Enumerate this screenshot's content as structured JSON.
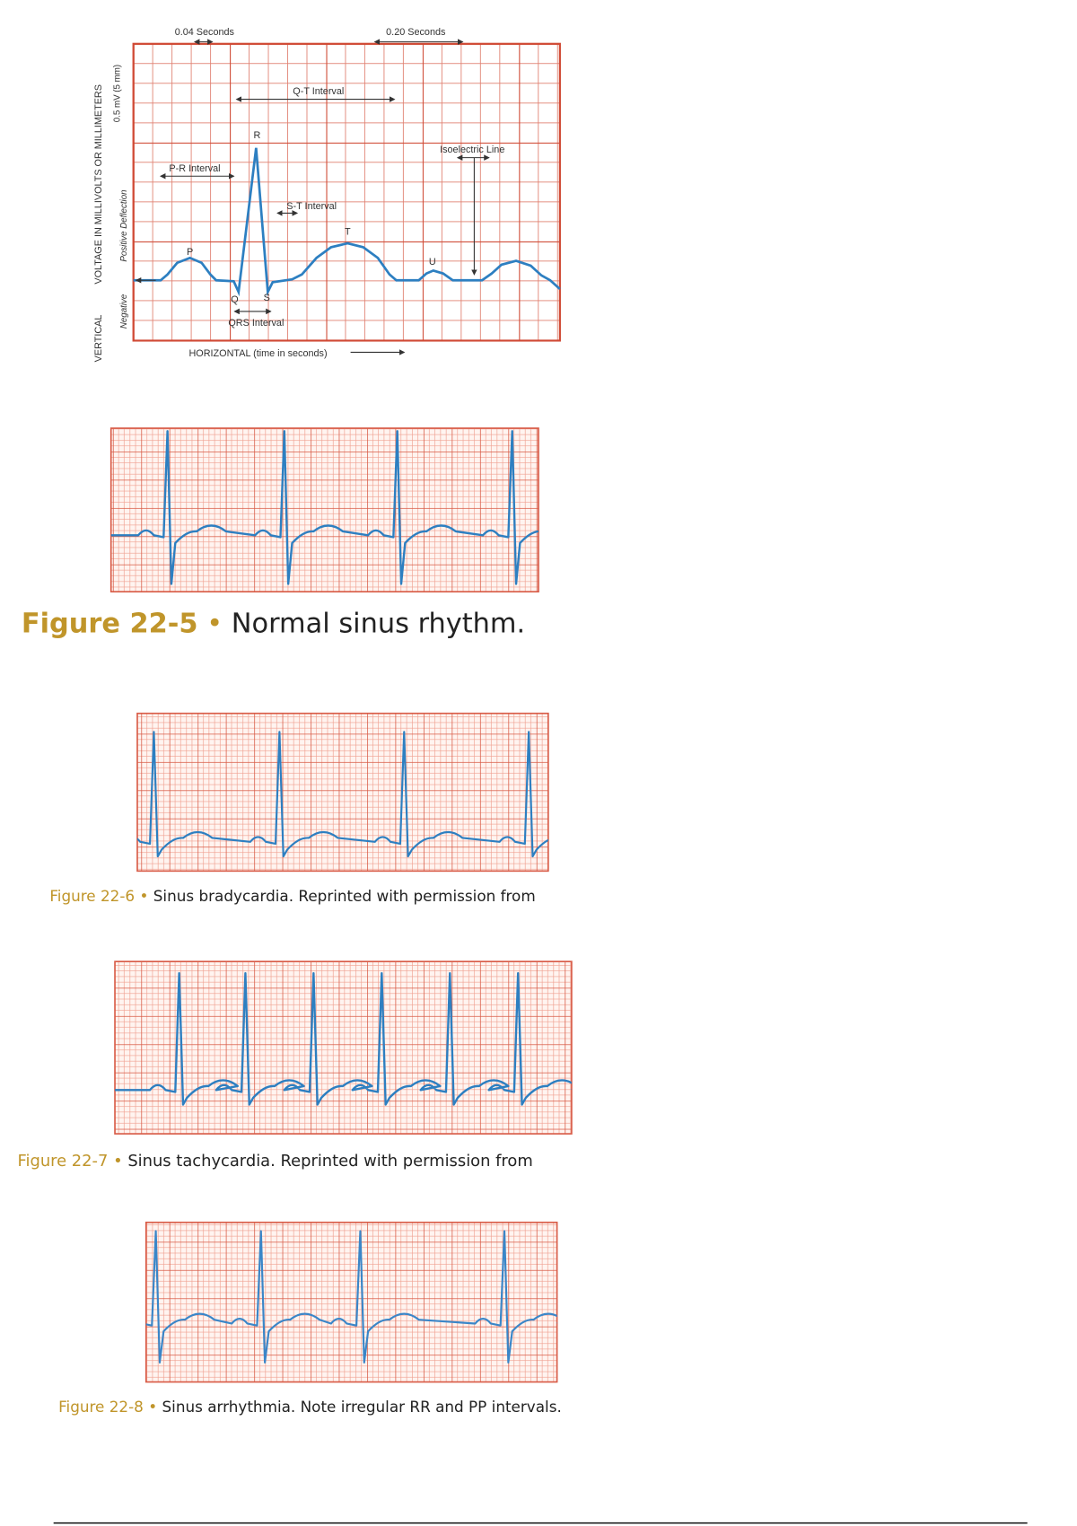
{
  "diagram": {
    "top_labels": [
      "0.04 Seconds",
      "0.20 Seconds"
    ],
    "qt_interval": "Q-T Interval",
    "pr_interval": "P-R Interval",
    "isoelectric_line": "Isoelectric Line",
    "st_interval": "S-T Interval",
    "qrs_interval": "QRS Interval",
    "waves": {
      "p": "P",
      "q": "Q",
      "r": "R",
      "s": "S",
      "t": "T",
      "u": "U"
    },
    "horizontal_axis": "HORIZONTAL (time in seconds)",
    "vertical_axis": [
      "VERTICAL",
      "VOLTAGE IN MILLIVOLTS OR MILLIMETERS"
    ],
    "scale_label": "0.5 mV (5 mm)",
    "deflection_labels": [
      "Negative",
      "Positive Deflection"
    ]
  },
  "figures": [
    {
      "label": "Figure 22-5",
      "bullet": "•",
      "text": "Normal sinus rhythm."
    },
    {
      "label": "Figure 22-6",
      "bullet": "•",
      "text": "Sinus bradycardia. Reprinted with permission from"
    },
    {
      "label": "Figure 22-7",
      "bullet": "•",
      "text": "Sinus tachycardia. Reprinted with permission from"
    },
    {
      "label": "Figure 22-8",
      "bullet": "•",
      "text": "Sinus arrhythmia. Note irregular RR and PP intervals."
    }
  ]
}
